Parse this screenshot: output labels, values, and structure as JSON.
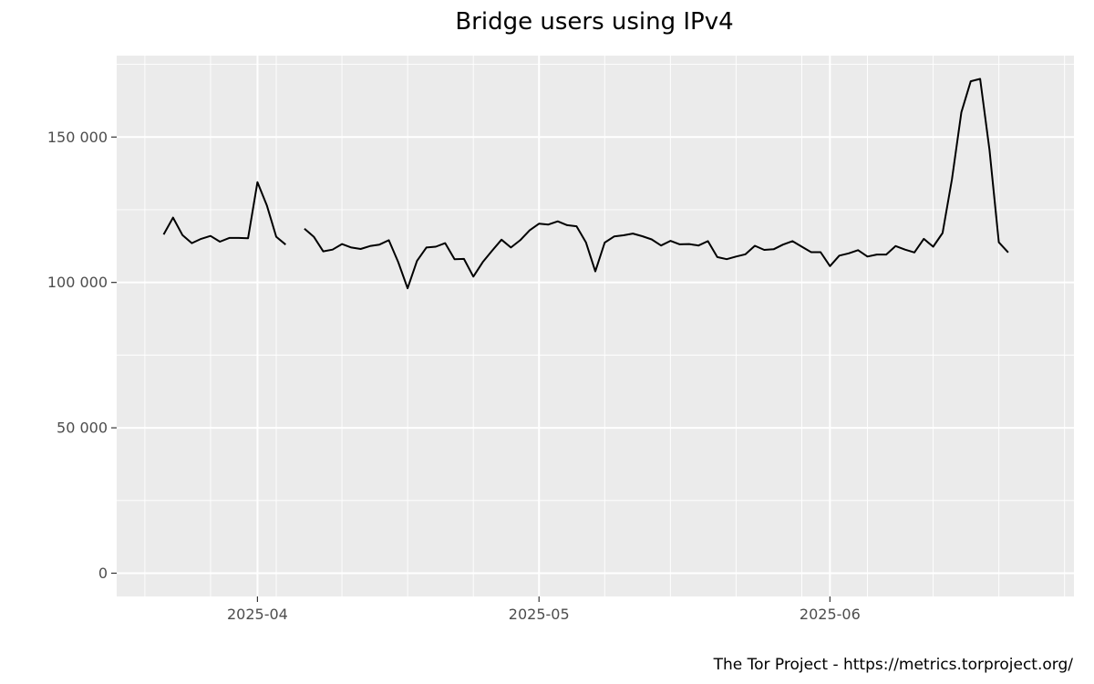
{
  "chart_data": {
    "type": "line",
    "title": "Bridge users using IPv4",
    "xlabel": "",
    "ylabel": "",
    "caption": "The Tor Project - https://metrics.torproject.org/",
    "x_type": "date",
    "xlim": [
      "2025-03-17",
      "2025-06-27"
    ],
    "ylim": [
      -8000,
      178000
    ],
    "yticks": [
      0,
      50000,
      100000,
      150000
    ],
    "ytick_labels": [
      "0",
      "50 000",
      "100 000",
      "150 000"
    ],
    "xticks": [
      "2025-04-01",
      "2025-05-01",
      "2025-06-01"
    ],
    "xtick_labels": [
      "2025-04",
      "2025-05",
      "2025-06"
    ],
    "grid": true,
    "colors": {
      "panel": "#ebebeb",
      "grid": "#ffffff",
      "line": "#000000",
      "tick": "#4d4d4d"
    },
    "series": [
      {
        "values": [
          [
            "2025-03-22",
            116500
          ],
          [
            "2025-03-23",
            122300
          ],
          [
            "2025-03-24",
            116300
          ],
          [
            "2025-03-25",
            113500
          ],
          [
            "2025-03-26",
            115000
          ],
          [
            "2025-03-27",
            116000
          ],
          [
            "2025-03-28",
            114000
          ],
          [
            "2025-03-29",
            115300
          ],
          [
            "2025-03-30",
            115300
          ],
          [
            "2025-03-31",
            115200
          ],
          [
            "2025-04-01",
            134500
          ],
          [
            "2025-04-02",
            126500
          ],
          [
            "2025-04-03",
            115700
          ],
          [
            "2025-04-04",
            113000
          ],
          [
            "2025-04-05",
            null
          ],
          [
            "2025-04-06",
            118500
          ],
          [
            "2025-04-07",
            115700
          ],
          [
            "2025-04-08",
            110700
          ],
          [
            "2025-04-09",
            111300
          ],
          [
            "2025-04-10",
            113200
          ],
          [
            "2025-04-11",
            112000
          ],
          [
            "2025-04-12",
            111500
          ],
          [
            "2025-04-13",
            112500
          ],
          [
            "2025-04-14",
            113000
          ],
          [
            "2025-04-15",
            114500
          ],
          [
            "2025-04-16",
            107000
          ],
          [
            "2025-04-17",
            98000
          ],
          [
            "2025-04-18",
            107400
          ],
          [
            "2025-04-19",
            112000
          ],
          [
            "2025-04-20",
            112300
          ],
          [
            "2025-04-21",
            113500
          ],
          [
            "2025-04-22",
            108000
          ],
          [
            "2025-04-23",
            108100
          ],
          [
            "2025-04-24",
            102000
          ],
          [
            "2025-04-25",
            107000
          ],
          [
            "2025-04-26",
            110900
          ],
          [
            "2025-04-27",
            114700
          ],
          [
            "2025-04-28",
            112000
          ],
          [
            "2025-04-29",
            114500
          ],
          [
            "2025-04-30",
            117900
          ],
          [
            "2025-05-01",
            120200
          ],
          [
            "2025-05-02",
            119900
          ],
          [
            "2025-05-03",
            121000
          ],
          [
            "2025-05-04",
            119700
          ],
          [
            "2025-05-05",
            119300
          ],
          [
            "2025-05-06",
            113800
          ],
          [
            "2025-05-07",
            103800
          ],
          [
            "2025-05-08",
            113700
          ],
          [
            "2025-05-09",
            115800
          ],
          [
            "2025-05-10",
            116200
          ],
          [
            "2025-05-11",
            116800
          ],
          [
            "2025-05-12",
            115900
          ],
          [
            "2025-05-13",
            114800
          ],
          [
            "2025-05-14",
            112700
          ],
          [
            "2025-05-15",
            114300
          ],
          [
            "2025-05-16",
            113100
          ],
          [
            "2025-05-17",
            113200
          ],
          [
            "2025-05-18",
            112700
          ],
          [
            "2025-05-19",
            114200
          ],
          [
            "2025-05-20",
            108700
          ],
          [
            "2025-05-21",
            108000
          ],
          [
            "2025-05-22",
            108900
          ],
          [
            "2025-05-23",
            109700
          ],
          [
            "2025-05-24",
            112600
          ],
          [
            "2025-05-25",
            111200
          ],
          [
            "2025-05-26",
            111400
          ],
          [
            "2025-05-27",
            113000
          ],
          [
            "2025-05-28",
            114200
          ],
          [
            "2025-05-29",
            112300
          ],
          [
            "2025-05-30",
            110400
          ],
          [
            "2025-05-31",
            110400
          ],
          [
            "2025-06-01",
            105600
          ],
          [
            "2025-06-02",
            109200
          ],
          [
            "2025-06-03",
            110000
          ],
          [
            "2025-06-04",
            111100
          ],
          [
            "2025-06-05",
            108900
          ],
          [
            "2025-06-06",
            109600
          ],
          [
            "2025-06-07",
            109600
          ],
          [
            "2025-06-08",
            112500
          ],
          [
            "2025-06-09",
            111300
          ],
          [
            "2025-06-10",
            110300
          ],
          [
            "2025-06-11",
            115000
          ],
          [
            "2025-06-12",
            112300
          ],
          [
            "2025-06-13",
            117000
          ],
          [
            "2025-06-14",
            135500
          ],
          [
            "2025-06-15",
            158500
          ],
          [
            "2025-06-16",
            169200
          ],
          [
            "2025-06-17",
            170000
          ],
          [
            "2025-06-18",
            145500
          ],
          [
            "2025-06-19",
            113800
          ],
          [
            "2025-06-20",
            110300
          ]
        ]
      }
    ]
  }
}
